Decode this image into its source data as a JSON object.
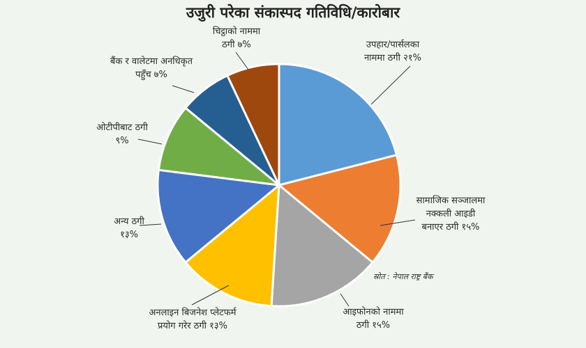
{
  "chart_data": {
    "type": "pie",
    "title": "उजुरी परेका संकास्पद गतिविधि/कारोबार",
    "source_note": "स्रोत : नेपाल राष्ट्र बैंक",
    "slices": [
      {
        "label_lines": [
          "उपहार/पार्सलका",
          "नाममा ठगी २१%"
        ],
        "value": 21,
        "color": "#5b9bd5"
      },
      {
        "label_lines": [
          "सामाजिक सञ्जालमा",
          "नक्कली आइडी",
          "बनाएर ठगी १५%"
        ],
        "value": 15,
        "color": "#ed7d31"
      },
      {
        "label_lines": [
          "आइफोनको नाममा",
          "ठगी १५%"
        ],
        "value": 15,
        "color": "#a5a5a5"
      },
      {
        "label_lines": [
          "अनलाइन बिजनेश प्लेटफर्म",
          "प्रयोग गरेर ठगी १३%"
        ],
        "value": 13,
        "color": "#ffc000"
      },
      {
        "label_lines": [
          "अन्य ठगी",
          "१३%"
        ],
        "value": 13,
        "color": "#4472c4"
      },
      {
        "label_lines": [
          "ओटीपीबाट ठगी",
          "९%"
        ],
        "value": 9,
        "color": "#70ad47"
      },
      {
        "label_lines": [
          "बैंक र वालेटमा अनधिकृत",
          "पहुँच ७%"
        ],
        "value": 7,
        "color": "#255e91"
      },
      {
        "label_lines": [
          "चिट्ठाको नाममा",
          "ठगी ७%"
        ],
        "value": 7,
        "color": "#9e480e"
      }
    ]
  }
}
